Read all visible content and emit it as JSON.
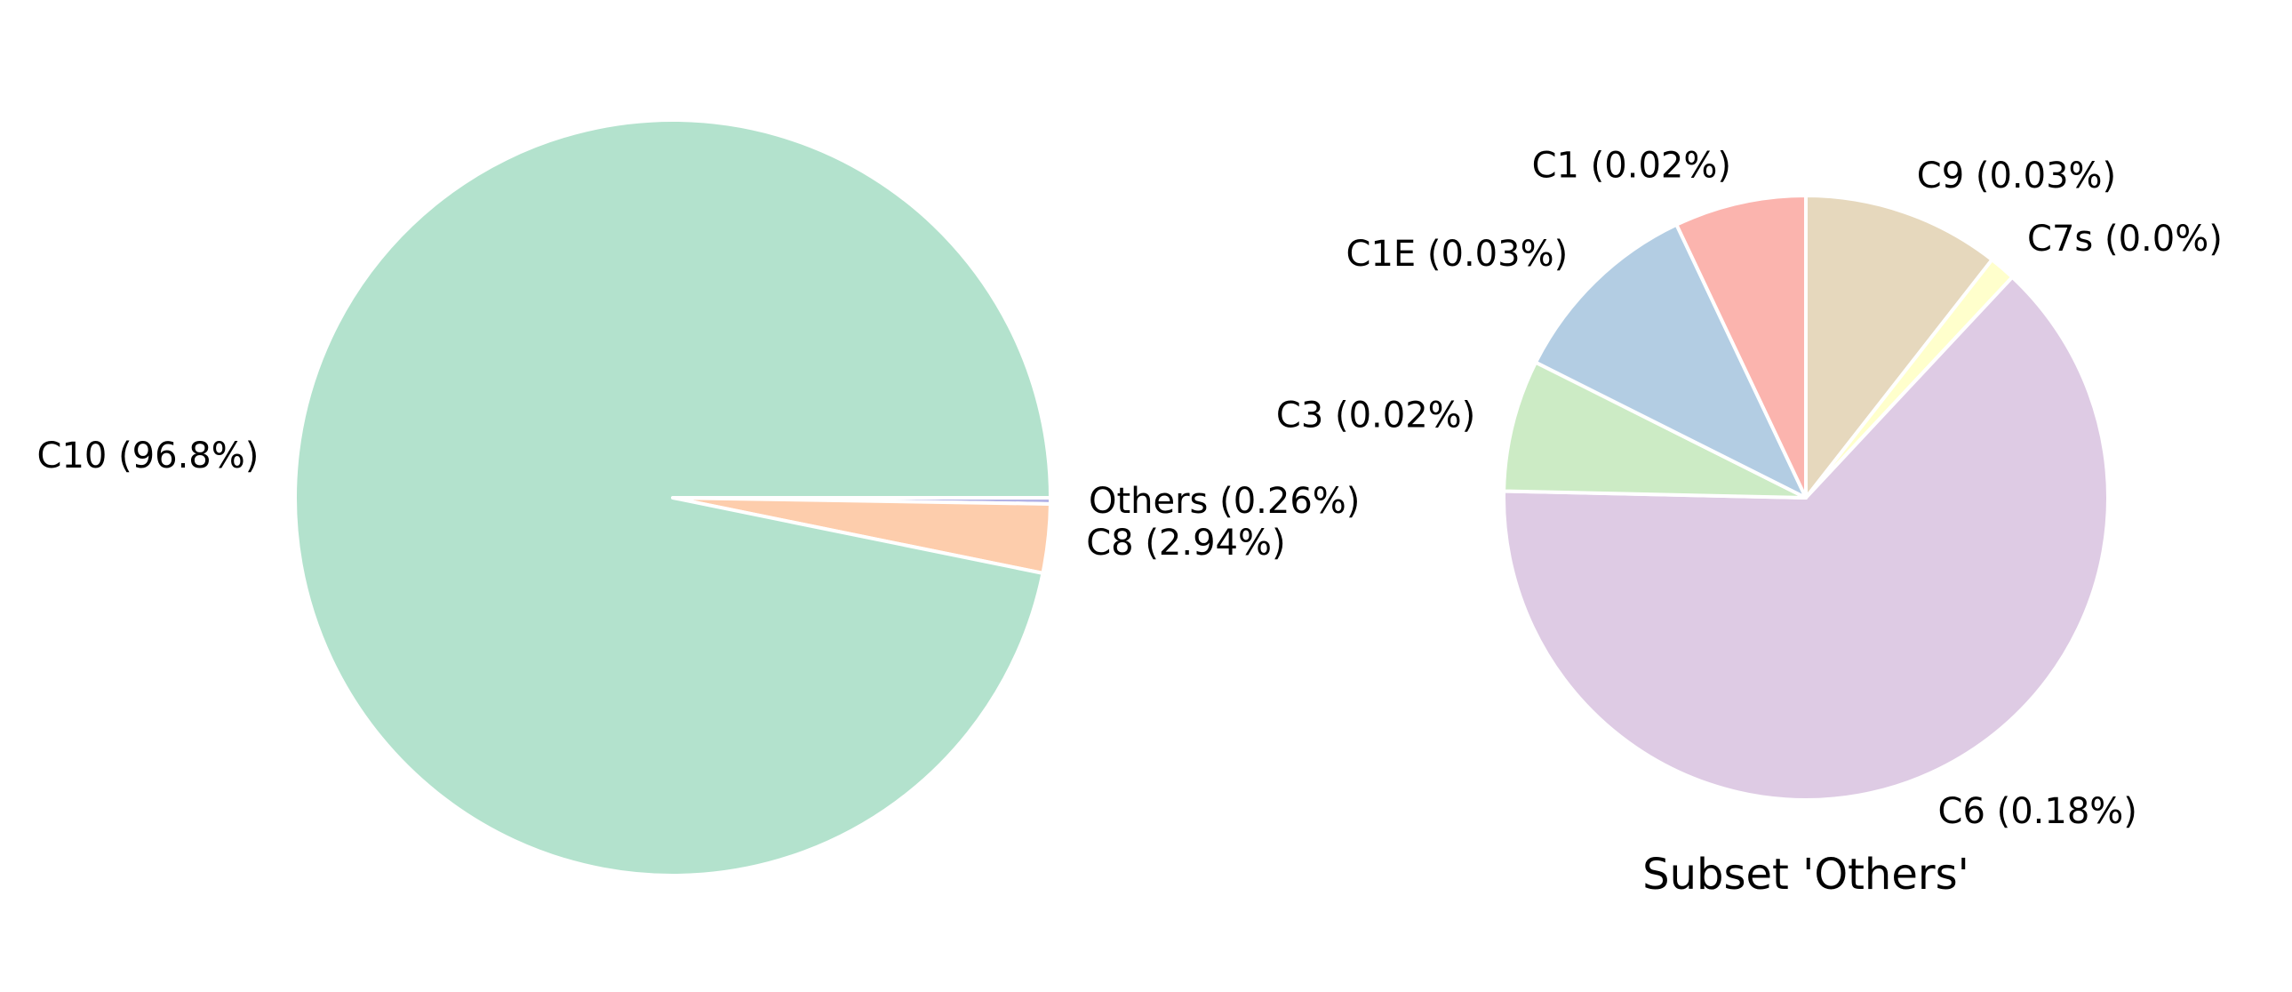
{
  "chart_data": [
    {
      "type": "pie",
      "title": "",
      "start_angle_deg": 0,
      "direction": "clockwise",
      "slices": [
        {
          "label": "Others (0.26%)",
          "value": 0.26,
          "color": "#b3b3e6"
        },
        {
          "label": "C8 (2.94%)",
          "value": 2.94,
          "color": "#fdcdac"
        },
        {
          "label": "C10 (96.8%)",
          "value": 96.8,
          "color": "#b3e2cd"
        }
      ]
    },
    {
      "type": "pie",
      "title": "Subset 'Others'",
      "start_angle_deg": 90,
      "direction": "clockwise",
      "slices": [
        {
          "label": "C9 (0.03%)",
          "value": 0.03,
          "color": "#e6d8bd"
        },
        {
          "label": "C7s (0.0%)",
          "value": 0.004,
          "color": "#ffffcc"
        },
        {
          "label": "C6 (0.18%)",
          "value": 0.18,
          "color": "#decbe4"
        },
        {
          "label": "C3 (0.02%)",
          "value": 0.02,
          "color": "#ccebc5"
        },
        {
          "label": "C1E (0.03%)",
          "value": 0.03,
          "color": "#b3cde3"
        },
        {
          "label": "C1 (0.02%)",
          "value": 0.02,
          "color": "#fbb4ae"
        }
      ]
    }
  ]
}
